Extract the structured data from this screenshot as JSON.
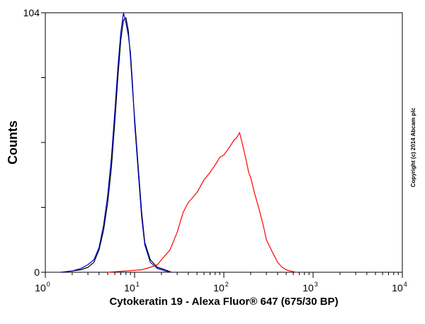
{
  "chart_data": {
    "type": "line",
    "xlabel": "Cytokeratin 19 - Alexa Fluor® 647 (675/30 BP)",
    "ylabel": "Counts",
    "x_scale": "log",
    "xlim": [
      1,
      10000
    ],
    "ylim": [
      0,
      104
    ],
    "x_ticks": [
      {
        "base": "10",
        "exp": "0",
        "value": 1
      },
      {
        "base": "10",
        "exp": "1",
        "value": 10
      },
      {
        "base": "10",
        "exp": "2",
        "value": 100
      },
      {
        "base": "10",
        "exp": "3",
        "value": 1000
      },
      {
        "base": "10",
        "exp": "4",
        "value": 10000
      }
    ],
    "y_ticks": [
      {
        "label": "0",
        "value": 0
      },
      {
        "label": "104",
        "value": 104
      }
    ],
    "copyright": "Copyright (c) 2014 Abcam plc",
    "series": [
      {
        "color": "#000000",
        "points": [
          [
            1.5,
            0
          ],
          [
            2,
            0.5
          ],
          [
            2.5,
            1
          ],
          [
            3,
            2
          ],
          [
            3.5,
            4
          ],
          [
            4,
            9
          ],
          [
            4.5,
            17
          ],
          [
            5,
            28
          ],
          [
            5.5,
            42
          ],
          [
            6,
            60
          ],
          [
            6.5,
            78
          ],
          [
            7,
            93
          ],
          [
            7.5,
            101
          ],
          [
            8,
            102
          ],
          [
            8.5,
            97
          ],
          [
            9,
            86
          ],
          [
            9.5,
            73
          ],
          [
            10,
            62
          ],
          [
            11,
            42
          ],
          [
            12,
            24
          ],
          [
            13,
            12
          ],
          [
            15,
            5
          ],
          [
            18,
            2
          ],
          [
            22,
            1
          ],
          [
            26,
            0
          ]
        ]
      },
      {
        "color": "#0000cc",
        "points": [
          [
            1.5,
            0
          ],
          [
            2,
            0.5
          ],
          [
            2.5,
            1.5
          ],
          [
            3,
            3
          ],
          [
            3.5,
            5
          ],
          [
            4,
            10
          ],
          [
            4.5,
            19
          ],
          [
            5,
            31
          ],
          [
            5.5,
            46
          ],
          [
            6,
            64
          ],
          [
            6.5,
            82
          ],
          [
            7,
            96
          ],
          [
            7.5,
            104
          ],
          [
            8,
            100
          ],
          [
            8.5,
            95
          ],
          [
            9,
            88
          ],
          [
            9.5,
            75
          ],
          [
            10,
            60
          ],
          [
            11,
            40
          ],
          [
            12,
            22
          ],
          [
            13,
            11
          ],
          [
            15,
            4
          ],
          [
            18,
            1.5
          ],
          [
            22,
            0.5
          ],
          [
            26,
            0
          ]
        ]
      },
      {
        "color": "#ff0000",
        "points": [
          [
            5,
            0
          ],
          [
            8,
            0.5
          ],
          [
            12,
            1
          ],
          [
            15,
            2
          ],
          [
            18,
            3
          ],
          [
            20,
            5
          ],
          [
            25,
            9
          ],
          [
            30,
            16
          ],
          [
            35,
            24
          ],
          [
            40,
            28
          ],
          [
            45,
            30
          ],
          [
            50,
            32
          ],
          [
            60,
            37
          ],
          [
            70,
            40
          ],
          [
            80,
            43
          ],
          [
            90,
            46
          ],
          [
            100,
            47
          ],
          [
            110,
            49
          ],
          [
            120,
            51
          ],
          [
            130,
            53
          ],
          [
            140,
            54
          ],
          [
            150,
            56
          ],
          [
            160,
            52
          ],
          [
            170,
            48
          ],
          [
            180,
            44
          ],
          [
            190,
            40
          ],
          [
            200,
            38
          ],
          [
            220,
            32
          ],
          [
            250,
            25
          ],
          [
            280,
            18
          ],
          [
            300,
            13
          ],
          [
            350,
            8
          ],
          [
            400,
            4
          ],
          [
            450,
            2
          ],
          [
            500,
            1
          ],
          [
            550,
            0.5
          ],
          [
            650,
            0
          ]
        ]
      }
    ]
  }
}
